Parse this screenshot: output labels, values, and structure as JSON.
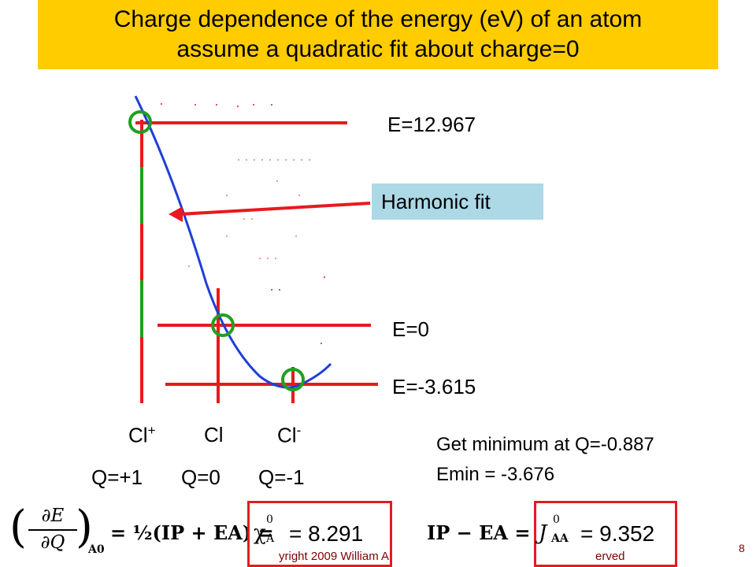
{
  "title": {
    "line1": "Charge dependence of the energy (eV) of an atom",
    "line2": "assume a quadratic fit about charge=0"
  },
  "energy_labels": {
    "e_plus": "E=12.967",
    "e_zero": "E=0",
    "e_minus": "E=-3.615"
  },
  "harmonic_fit_label": "Harmonic fit",
  "species": {
    "cation": "Cl",
    "cation_sup": "+",
    "neutral": "Cl",
    "anion": "Cl",
    "anion_sup": "-"
  },
  "charges": {
    "plus": "Q=+1",
    "zero": "Q=0",
    "minus": "Q=-1"
  },
  "minimum": {
    "line1": "Get minimum at Q=-0.887",
    "line2": "Emin = -3.676"
  },
  "equations": {
    "lhs_num": "∂E",
    "lhs_den": "∂Q",
    "lhs_sub": "A0",
    "mid": "= ½(IP + EA) =",
    "chi": "χ",
    "chi_sup": "0",
    "chi_sub": "A",
    "chi_value": "= 8.291",
    "rhs_lhs": "IP − EA =",
    "j": "J",
    "j_sup": "0",
    "j_sub": "AA",
    "j_value": "= 9.352"
  },
  "footer": {
    "copyright": "yright 2009 William A",
    "reserved": "erved",
    "page": "8"
  },
  "colors": {
    "title_bg": "#FFCC00",
    "fit_box_bg": "#ADD8E6",
    "marker_line": "#E8191F",
    "circle": "#1FA01F",
    "curve": "#1E3FD8"
  }
}
